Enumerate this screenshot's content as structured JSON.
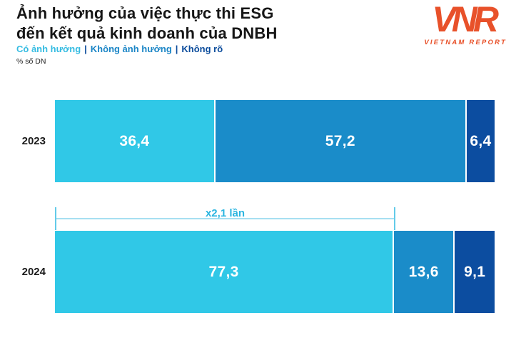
{
  "title": {
    "line1": "Ảnh hưởng của việc thực thi ESG",
    "line2": "đến kết quả kinh doanh của DNBH"
  },
  "subtitle": "% số DN",
  "legend": {
    "separator": "|",
    "separator_color": "#0b4c9c",
    "items": [
      {
        "label": "Có ảnh hưởng",
        "color": "#35bce2"
      },
      {
        "label": "Không ảnh hưởng",
        "color": "#1a85c6"
      },
      {
        "label": "Không rõ",
        "color": "#0b4c9c"
      }
    ]
  },
  "logo": {
    "acronym": "VNR",
    "name": "VIETNAM REPORT",
    "color": "#e8512a"
  },
  "chart_data": {
    "type": "bar",
    "stacked": true,
    "orientation": "horizontal",
    "title": "Ảnh hưởng của việc thực thi ESG đến kết quả kinh doanh của DNBH",
    "unit": "% số DN",
    "xlim": [
      0,
      100
    ],
    "grid": false,
    "legend_position": "top-left",
    "categories": [
      "2023",
      "2024"
    ],
    "series": [
      {
        "name": "Có ảnh hưởng",
        "color": "#30c8e7",
        "values": [
          36.4,
          77.3
        ]
      },
      {
        "name": "Không ảnh hưởng",
        "color": "#1a8cc9",
        "values": [
          57.2,
          13.6
        ]
      },
      {
        "name": "Không rõ",
        "color": "#0c4da0",
        "values": [
          6.4,
          9.1
        ]
      }
    ],
    "value_labels": [
      [
        "36,4",
        "57,2",
        "6,4"
      ],
      [
        "77,3",
        "13,6",
        "9,1"
      ]
    ],
    "annotation": {
      "text": "x2,1 lần"
    }
  }
}
